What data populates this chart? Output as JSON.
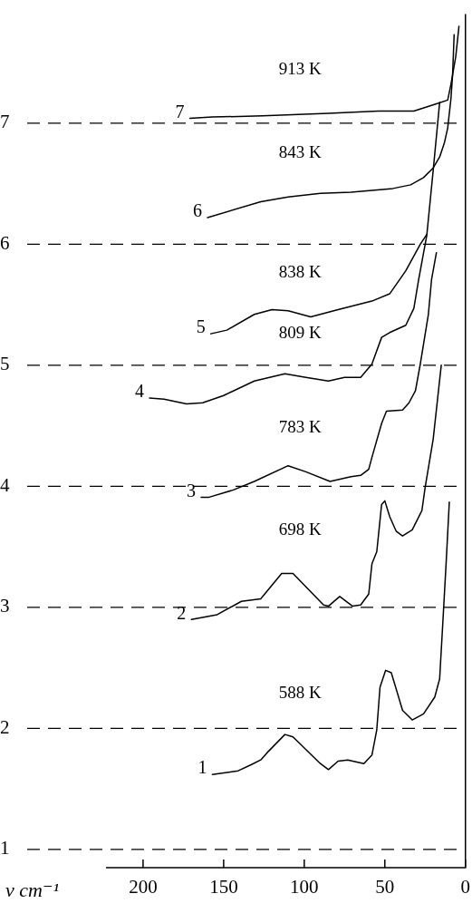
{
  "chart_data": {
    "type": "line",
    "xlabel": "ν cm⁻¹",
    "xlim": [
      223,
      0
    ],
    "xticks": [
      200,
      150,
      100,
      50,
      0
    ],
    "ylim": [
      0.85,
      7.9
    ],
    "yticks": [
      1,
      2,
      3,
      4,
      5,
      6,
      7
    ],
    "grid": "y",
    "legend": false,
    "marker": "none",
    "line_style": "solid",
    "annotations": [
      "913 K",
      "843 K",
      "838 K",
      "809 K",
      "783 K",
      "698 K",
      "588 K"
    ],
    "series": [
      {
        "name": "1",
        "color": "#000000",
        "x": [
          157,
          141,
          133,
          127,
          123,
          112,
          107,
          90,
          85,
          79,
          73,
          63,
          58,
          55,
          53,
          49.5,
          46,
          39,
          33,
          26,
          19,
          16,
          14,
          12,
          10
        ],
        "values": [
          1.62,
          1.65,
          1.7,
          1.74,
          1.8,
          1.95,
          1.93,
          1.71,
          1.66,
          1.73,
          1.74,
          1.71,
          1.78,
          1.99,
          2.34,
          2.48,
          2.46,
          2.15,
          2.07,
          2.12,
          2.26,
          2.41,
          2.88,
          3.36,
          3.87
        ]
      },
      {
        "name": "2",
        "color": "#000000",
        "x": [
          170,
          154,
          139,
          127,
          114,
          107,
          88,
          85,
          78,
          70,
          65,
          60,
          58,
          55,
          52,
          50,
          47,
          43,
          39,
          33,
          27,
          25,
          20,
          15
        ],
        "values": [
          2.9,
          2.94,
          3.05,
          3.07,
          3.28,
          3.28,
          3.02,
          3.01,
          3.09,
          3.01,
          3.02,
          3.11,
          3.36,
          3.46,
          3.85,
          3.88,
          3.75,
          3.63,
          3.59,
          3.64,
          3.8,
          3.99,
          4.39,
          5.0
        ]
      },
      {
        "name": "3",
        "color": "#000000",
        "x": [
          164,
          159,
          144,
          131,
          110,
          99,
          84,
          71,
          65,
          60,
          58,
          52,
          49,
          39,
          35,
          31,
          28,
          23,
          21,
          18
        ],
        "values": [
          3.91,
          3.91,
          3.97,
          4.04,
          4.17,
          4.12,
          4.04,
          4.08,
          4.09,
          4.14,
          4.24,
          4.52,
          4.62,
          4.63,
          4.69,
          4.79,
          5.01,
          5.42,
          5.71,
          5.93
        ]
      },
      {
        "name": "4",
        "color": "#000000",
        "x": [
          196,
          187,
          173,
          163,
          150,
          131,
          112,
          99,
          85,
          75,
          65,
          58,
          52,
          47,
          37,
          32,
          29,
          24,
          20,
          16
        ],
        "values": [
          4.73,
          4.72,
          4.68,
          4.69,
          4.75,
          4.87,
          4.93,
          4.9,
          4.87,
          4.9,
          4.9,
          5.01,
          5.23,
          5.27,
          5.33,
          5.47,
          5.71,
          6.07,
          6.61,
          7.17
        ]
      },
      {
        "name": "5",
        "color": "#000000",
        "x": [
          158,
          148,
          131,
          120,
          110,
          96,
          79,
          58,
          47,
          37,
          28,
          24
        ],
        "values": [
          5.26,
          5.29,
          5.42,
          5.46,
          5.45,
          5.4,
          5.46,
          5.53,
          5.59,
          5.78,
          6.0,
          6.08
        ]
      },
      {
        "name": "6",
        "color": "#000000",
        "x": [
          160,
          127,
          110,
          90,
          71,
          45,
          34,
          26,
          20,
          16,
          13,
          11,
          9,
          8,
          7
        ],
        "values": [
          6.22,
          6.35,
          6.39,
          6.42,
          6.43,
          6.46,
          6.49,
          6.55,
          6.63,
          6.72,
          6.84,
          6.96,
          7.2,
          7.39,
          7.73
        ]
      },
      {
        "name": "7",
        "color": "#000000",
        "x": [
          171,
          157,
          126,
          85,
          54,
          32,
          18,
          11,
          9,
          6,
          4
        ],
        "values": [
          7.04,
          7.05,
          7.06,
          7.08,
          7.1,
          7.1,
          7.16,
          7.19,
          7.32,
          7.55,
          7.8
        ]
      }
    ]
  }
}
